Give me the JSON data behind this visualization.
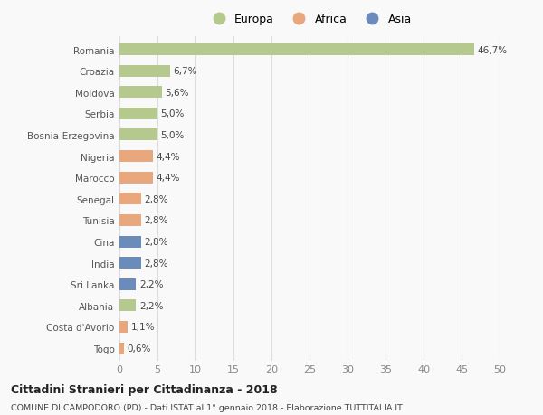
{
  "countries": [
    "Romania",
    "Croazia",
    "Moldova",
    "Serbia",
    "Bosnia-Erzegovina",
    "Nigeria",
    "Marocco",
    "Senegal",
    "Tunisia",
    "Cina",
    "India",
    "Sri Lanka",
    "Albania",
    "Costa d'Avorio",
    "Togo"
  ],
  "values": [
    46.7,
    6.7,
    5.6,
    5.0,
    5.0,
    4.4,
    4.4,
    2.8,
    2.8,
    2.8,
    2.8,
    2.2,
    2.2,
    1.1,
    0.6
  ],
  "labels": [
    "46,7%",
    "6,7%",
    "5,6%",
    "5,0%",
    "5,0%",
    "4,4%",
    "4,4%",
    "2,8%",
    "2,8%",
    "2,8%",
    "2,8%",
    "2,2%",
    "2,2%",
    "1,1%",
    "0,6%"
  ],
  "continent": [
    "Europa",
    "Europa",
    "Europa",
    "Europa",
    "Europa",
    "Africa",
    "Africa",
    "Africa",
    "Africa",
    "Asia",
    "Asia",
    "Asia",
    "Europa",
    "Africa",
    "Africa"
  ],
  "colors": {
    "Europa": "#b5c98e",
    "Africa": "#e8a77c",
    "Asia": "#6b8cba"
  },
  "xlim": [
    0,
    50
  ],
  "xticks": [
    0,
    5,
    10,
    15,
    20,
    25,
    30,
    35,
    40,
    45,
    50
  ],
  "title": "Cittadini Stranieri per Cittadinanza - 2018",
  "subtitle": "COMUNE DI CAMPODORO (PD) - Dati ISTAT al 1° gennaio 2018 - Elaborazione TUTTITALIA.IT",
  "background_color": "#f9f9f9",
  "grid_color": "#dddddd",
  "bar_height": 0.55
}
